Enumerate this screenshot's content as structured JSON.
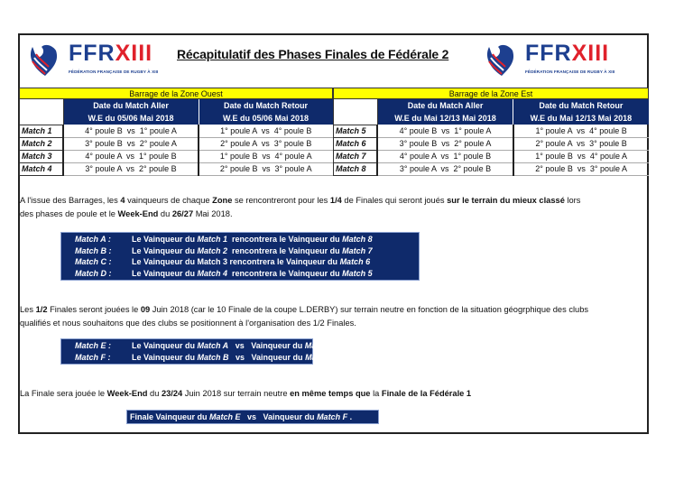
{
  "header": {
    "title": "Récapitulatif des Phases Finales de Fédérale 2",
    "logo": {
      "main_a": "FFR",
      "main_b": "XIII",
      "sub": "FÉDÉRATION FRANÇAISE DE RUGBY À XIII"
    }
  },
  "colors": {
    "navy": "#0f2a6b",
    "yellow": "#ffff00",
    "logo_blue": "#1d3f8f",
    "logo_red": "#e0212b"
  },
  "zones": [
    {
      "title": "Barrage de la Zone Ouest",
      "aller": {
        "h1": "Date du Match Aller",
        "h2": "W.E du 05/06 Mai 2018"
      },
      "retour": {
        "h1": "Date du Match Retour",
        "h2": "W.E du 05/06 Mai 2018"
      },
      "rows": [
        {
          "label": "Match 1",
          "aller": "4° poule B  vs  1° poule A",
          "retour": "1° poule A  vs  4° poule B"
        },
        {
          "label": "Match 2",
          "aller": "3° poule B  vs  2° poule A",
          "retour": "2° poule A  vs  3° poule B"
        },
        {
          "label": "Match 3",
          "aller": "4° poule A  vs  1° poule B",
          "retour": "1° poule B  vs  4° poule A"
        },
        {
          "label": "Match 4",
          "aller": "3° poule A  vs  2° poule B",
          "retour": "2° poule B  vs  3° poule A"
        }
      ]
    },
    {
      "title": "Barrage de la Zone Est",
      "aller": {
        "h1": "Date du Match Aller",
        "h2": "W.E du Mai 12/13 Mai 2018"
      },
      "retour": {
        "h1": "Date du Match Retour",
        "h2": "W.E du Mai 12/13 Mai 2018"
      },
      "rows": [
        {
          "label": "Match 5",
          "aller": "4° poule B  vs  1° poule A",
          "retour": "1° poule A  vs  4° poule B"
        },
        {
          "label": "Match 6",
          "aller": "3° poule B  vs  2° poule A",
          "retour": "2° poule A  vs  3° poule B"
        },
        {
          "label": "Match 7",
          "aller": "4° poule A  vs  1° poule B",
          "retour": "1° poule B  vs  4° poule A"
        },
        {
          "label": "Match 8",
          "aller": "3° poule A  vs  2° poule B",
          "retour": "2° poule B  vs  3° poule A"
        }
      ]
    }
  ],
  "paragraphs": {
    "quarter": [
      {
        "t": "A l'issue des Barrages, les "
      },
      {
        "t": "4",
        "b": true
      },
      {
        "t": " vainqueurs de chaque "
      },
      {
        "t": "Zone",
        "b": true
      },
      {
        "t": " se rencontreront pour les "
      },
      {
        "t": "1/4",
        "b": true
      },
      {
        "t": " de Finales qui seront joués "
      },
      {
        "t": "sur le terrain du mieux classé",
        "b": true
      },
      {
        "t": " lors"
      },
      {
        "br": true
      },
      {
        "t": "des phases de poule et le "
      },
      {
        "t": "Week-End",
        "b": true
      },
      {
        "t": " du "
      },
      {
        "t": "26/27",
        "b": true
      },
      {
        "t": " Mai 2018."
      }
    ],
    "semi": [
      {
        "t": "Les "
      },
      {
        "t": "1/2",
        "b": true
      },
      {
        "t": " Finales seront jouées le "
      },
      {
        "t": "09",
        "b": true
      },
      {
        "t": " Juin 2018 (car le 10 Finale de la coupe L.DERBY) sur terrain neutre en fonction de la situation géogrphique des clubs"
      },
      {
        "br": true
      },
      {
        "t": "qualifiés et nous souhaitons que des clubs se positionnent à l'organisation des 1/2 Finales."
      }
    ],
    "final": [
      {
        "t": "La Finale sera jouée le "
      },
      {
        "t": "Week-End",
        "b": true
      },
      {
        "t": " du "
      },
      {
        "t": "23/24",
        "b": true
      },
      {
        "t": " Juin 2018 sur terrain neutre "
      },
      {
        "t": "en même temps que",
        "b": true
      },
      {
        "t": " la "
      },
      {
        "t": "Finale de la Fédérale 1",
        "b": true
      }
    ]
  },
  "quarter_box": [
    {
      "key": "Match A :",
      "text": [
        {
          "t": "Le Vainqueur du "
        },
        {
          "t": "Match 1",
          "i": true
        },
        {
          "t": "  rencontrera le Vainqueur du "
        },
        {
          "t": "Match 8",
          "i": true
        }
      ]
    },
    {
      "key": "Match B :",
      "text": [
        {
          "t": "Le Vainqueur du "
        },
        {
          "t": "Match 2",
          "i": true
        },
        {
          "t": "  rencontrera le Vainqueur du "
        },
        {
          "t": "Match 7",
          "i": true
        }
      ]
    },
    {
      "key": "Match C :",
      "text": [
        {
          "t": "Le Vainqueur du Match 3 rencontrera le Vainqueur du "
        },
        {
          "t": "Match 6",
          "i": true
        }
      ]
    },
    {
      "key": "Match D :",
      "text": [
        {
          "t": "Le Vainqueur du "
        },
        {
          "t": "Match 4",
          "i": true
        },
        {
          "t": "  rencontrera le Vainqueur du "
        },
        {
          "t": "Match 5",
          "i": true
        }
      ]
    }
  ],
  "semi_box": [
    {
      "key": "Match E :",
      "text": [
        {
          "t": "Le Vainqueur du "
        },
        {
          "t": "Match A",
          "i": true
        },
        {
          "t": "   vs   Vainqueur du "
        },
        {
          "t": "Match D",
          "i": true
        }
      ]
    },
    {
      "key": "Match F :",
      "text": [
        {
          "t": "Le Vainqueur du "
        },
        {
          "t": "Match B",
          "i": true
        },
        {
          "t": "   vs   Vainqueur du "
        },
        {
          "t": "Match C",
          "i": true
        }
      ]
    }
  ],
  "final_box": [
    {
      "t": "Finale Vainqueur du "
    },
    {
      "t": "Match E",
      "i": true
    },
    {
      "t": "   vs   Vainqueur du "
    },
    {
      "t": "Match F",
      "i": true
    },
    {
      "t": " ."
    }
  ]
}
